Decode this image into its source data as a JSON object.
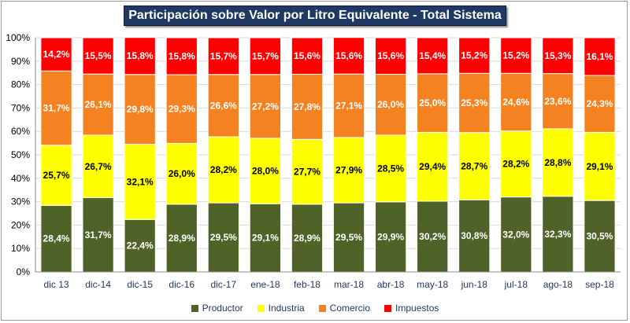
{
  "chart_data": {
    "type": "bar",
    "stacked": true,
    "title": "Participación sobre Valor por Litro Equivalente - Total Sistema",
    "categories": [
      "dic 13",
      "dic-14",
      "dic-15",
      "dic-16",
      "dic-17",
      "ene-18",
      "feb-18",
      "mar-18",
      "abr-18",
      "may-18",
      "jun-18",
      "jul-18",
      "ago-18",
      "sep-18"
    ],
    "yticks": [
      "0%",
      "10%",
      "20%",
      "30%",
      "40%",
      "50%",
      "60%",
      "70%",
      "80%",
      "90%",
      "100%"
    ],
    "ylim": [
      0,
      100
    ],
    "legend_position": "bottom",
    "series": [
      {
        "name": "Productor",
        "color": "#4f6228",
        "label_color": "#ffffff",
        "values": [
          28.4,
          31.7,
          22.4,
          28.9,
          29.5,
          29.1,
          28.9,
          29.5,
          29.9,
          30.2,
          30.8,
          32.0,
          32.3,
          30.5
        ],
        "labels": [
          "28,4%",
          "31,7%",
          "22,4%",
          "28,9%",
          "29,5%",
          "29,1%",
          "28,9%",
          "29,5%",
          "29,9%",
          "30,2%",
          "30,8%",
          "32,0%",
          "32,3%",
          "30,5%"
        ]
      },
      {
        "name": "Industria",
        "color": "#ffff00",
        "label_color": "#000000",
        "values": [
          25.7,
          26.7,
          32.1,
          26.0,
          28.2,
          28.0,
          27.7,
          27.9,
          28.5,
          29.4,
          28.7,
          28.2,
          28.8,
          29.1
        ],
        "labels": [
          "25,7%",
          "26,7%",
          "32,1%",
          "26,0%",
          "28,2%",
          "28,0%",
          "27,7%",
          "27,9%",
          "28,5%",
          "29,4%",
          "28,7%",
          "28,2%",
          "28,8%",
          "29,1%"
        ]
      },
      {
        "name": "Comercio",
        "color": "#f58220",
        "label_color": "#ffffff",
        "values": [
          31.7,
          26.1,
          29.8,
          29.3,
          26.6,
          27.2,
          27.8,
          27.1,
          26.0,
          25.0,
          25.3,
          24.6,
          23.6,
          24.3
        ],
        "labels": [
          "31,7%",
          "26,1%",
          "29,8%",
          "29,3%",
          "26,6%",
          "27,2%",
          "27,8%",
          "27,1%",
          "26,0%",
          "25,0%",
          "25,3%",
          "24,6%",
          "23,6%",
          "24,3%"
        ]
      },
      {
        "name": "Impuestos",
        "color": "#ff0000",
        "label_color": "#ffffff",
        "values": [
          14.2,
          15.5,
          15.8,
          15.8,
          15.7,
          15.7,
          15.6,
          15.6,
          15.6,
          15.4,
          15.2,
          15.2,
          15.3,
          16.1
        ],
        "labels": [
          "14,2%",
          "15,5%",
          "15,8%",
          "15,8%",
          "15,7%",
          "15,7%",
          "15,6%",
          "15,6%",
          "15,6%",
          "15,4%",
          "15,2%",
          "15,2%",
          "15,3%",
          "16,1%"
        ]
      }
    ]
  }
}
